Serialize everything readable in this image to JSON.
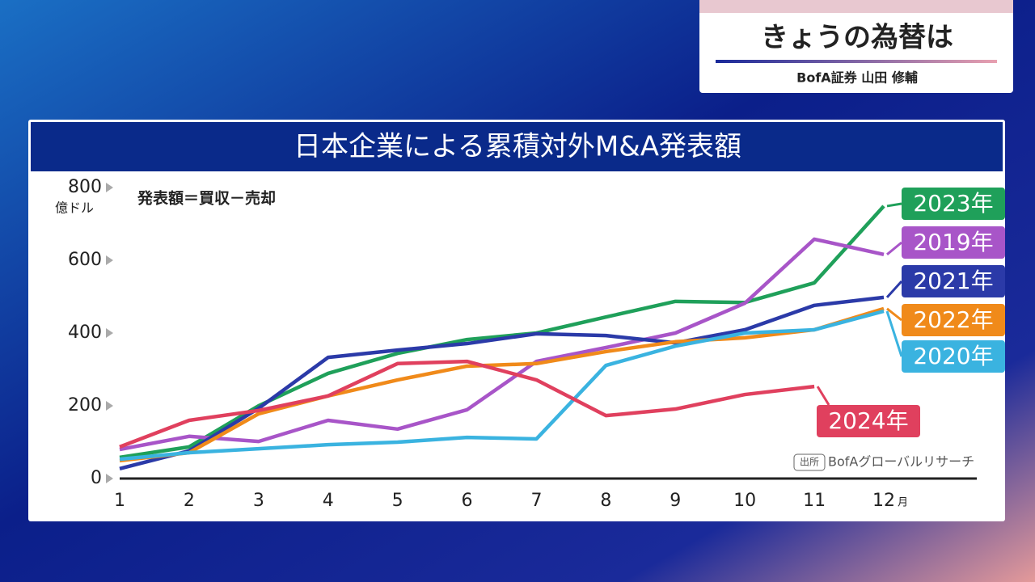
{
  "header": {
    "title": "きょうの為替は",
    "speaker": "BofA証券 山田 修輔"
  },
  "chart_data": {
    "type": "line",
    "title": "日本企業による累積対外M&A発表額",
    "y_unit": "億ドル",
    "x_unit": "月",
    "note": "発表額＝買収－売却",
    "source_tag": "出所",
    "source": "BofAグローバルリサーチ",
    "categories": [
      "1",
      "2",
      "3",
      "4",
      "5",
      "6",
      "7",
      "8",
      "9",
      "10",
      "11",
      "12"
    ],
    "ylim": [
      0,
      800
    ],
    "yticks": [
      0,
      200,
      400,
      600,
      800
    ],
    "series": [
      {
        "name": "2023年",
        "color": "#1fa05a",
        "values": [
          58,
          87,
          200,
          289,
          344,
          382,
          400,
          444,
          487,
          484,
          538,
          749
        ]
      },
      {
        "name": "2019年",
        "color": "#a855c8",
        "values": [
          80,
          116,
          102,
          160,
          136,
          189,
          322,
          360,
          400,
          482,
          658,
          616
        ]
      },
      {
        "name": "2021年",
        "color": "#2b3aa8",
        "values": [
          27,
          76,
          193,
          333,
          353,
          371,
          398,
          393,
          373,
          409,
          476,
          498
        ]
      },
      {
        "name": "2022年",
        "color": "#f08a1a",
        "values": [
          49,
          71,
          178,
          227,
          271,
          309,
          316,
          349,
          376,
          387,
          409,
          467
        ]
      },
      {
        "name": "2020年",
        "color": "#3ab3e0",
        "values": [
          53,
          71,
          82,
          93,
          100,
          113,
          109,
          311,
          364,
          400,
          409,
          460
        ]
      },
      {
        "name": "2024年",
        "color": "#e0405e",
        "values": [
          87,
          160,
          187,
          227,
          316,
          322,
          271,
          173,
          191,
          231,
          253,
          null
        ]
      }
    ]
  }
}
